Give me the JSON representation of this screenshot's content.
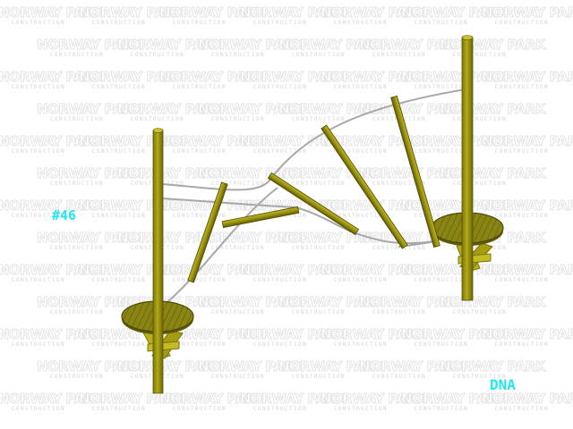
{
  "watermark": {
    "brand_text": "NORWAY PARK",
    "sub_text": "CONSTRUCTION"
  },
  "labels": {
    "model_number": "#46",
    "model_code": "DNA"
  },
  "colors": {
    "label_cyan": "#22e6f0",
    "post_olive": "#a39a10",
    "post_dark": "#6f6a08",
    "deck_fill": "#8f8a16",
    "cable_gray": "#a6a6a6"
  }
}
